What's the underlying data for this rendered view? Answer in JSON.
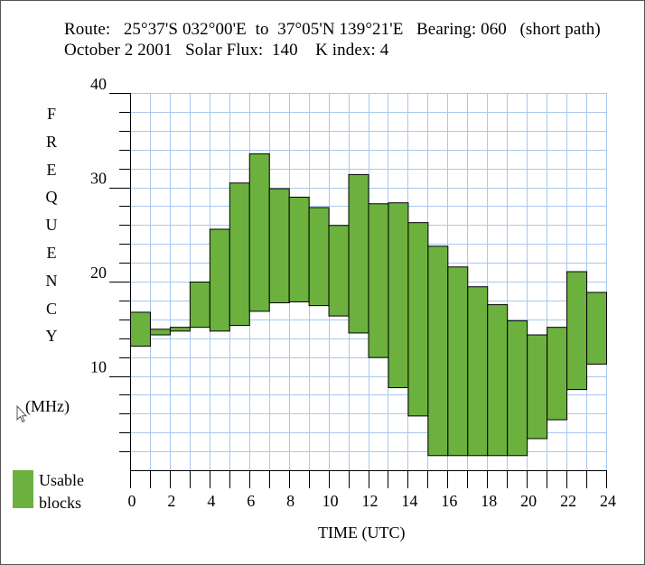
{
  "header": {
    "line1": "Route:   25°37'S 032°00'E  to  37°05'N 139°21'E   Bearing: 060   (short path)",
    "line2": "October 2 2001   Solar Flux:  140    K index: 4"
  },
  "legend": {
    "label_line1": "Usable",
    "label_line2": "blocks"
  },
  "colors": {
    "block": "#6cb13e",
    "grid": "#a8c8ee",
    "axis": "#000000"
  },
  "chart_data": {
    "type": "bar",
    "title": "",
    "xlabel": "TIME (UTC)",
    "ylabel": "FREQUENCY",
    "ylabel_letters": [
      "F",
      "R",
      "E",
      "Q",
      "U",
      "E",
      "N",
      "C",
      "Y"
    ],
    "yunit": "(MHz)",
    "xlim": [
      0,
      24
    ],
    "ylim": [
      0,
      40
    ],
    "grid": true,
    "xticks": [
      0,
      2,
      4,
      6,
      8,
      10,
      12,
      14,
      16,
      18,
      20,
      22,
      24
    ],
    "yticks": [
      10,
      20,
      30,
      40
    ],
    "series": [
      {
        "hours": [
          0,
          1,
          2,
          3,
          4,
          5,
          6,
          7,
          8,
          9,
          10,
          11,
          12,
          13,
          14,
          15,
          16,
          17,
          18,
          19,
          20,
          21,
          22,
          23
        ],
        "low": [
          13.2,
          14.4,
          14.8,
          15.2,
          14.8,
          15.4,
          16.9,
          17.8,
          17.9,
          17.5,
          16.4,
          14.6,
          12.0,
          8.8,
          5.8,
          1.6,
          1.6,
          1.6,
          1.6,
          1.6,
          3.4,
          5.4,
          8.6,
          11.3
        ],
        "high": [
          16.8,
          15.0,
          15.2,
          20.0,
          25.6,
          30.5,
          33.6,
          29.9,
          29.0,
          27.9,
          26.0,
          31.4,
          28.3,
          28.4,
          26.3,
          23.8,
          21.6,
          19.5,
          17.6,
          15.9,
          14.4,
          15.2,
          21.1,
          18.9
        ]
      }
    ]
  }
}
